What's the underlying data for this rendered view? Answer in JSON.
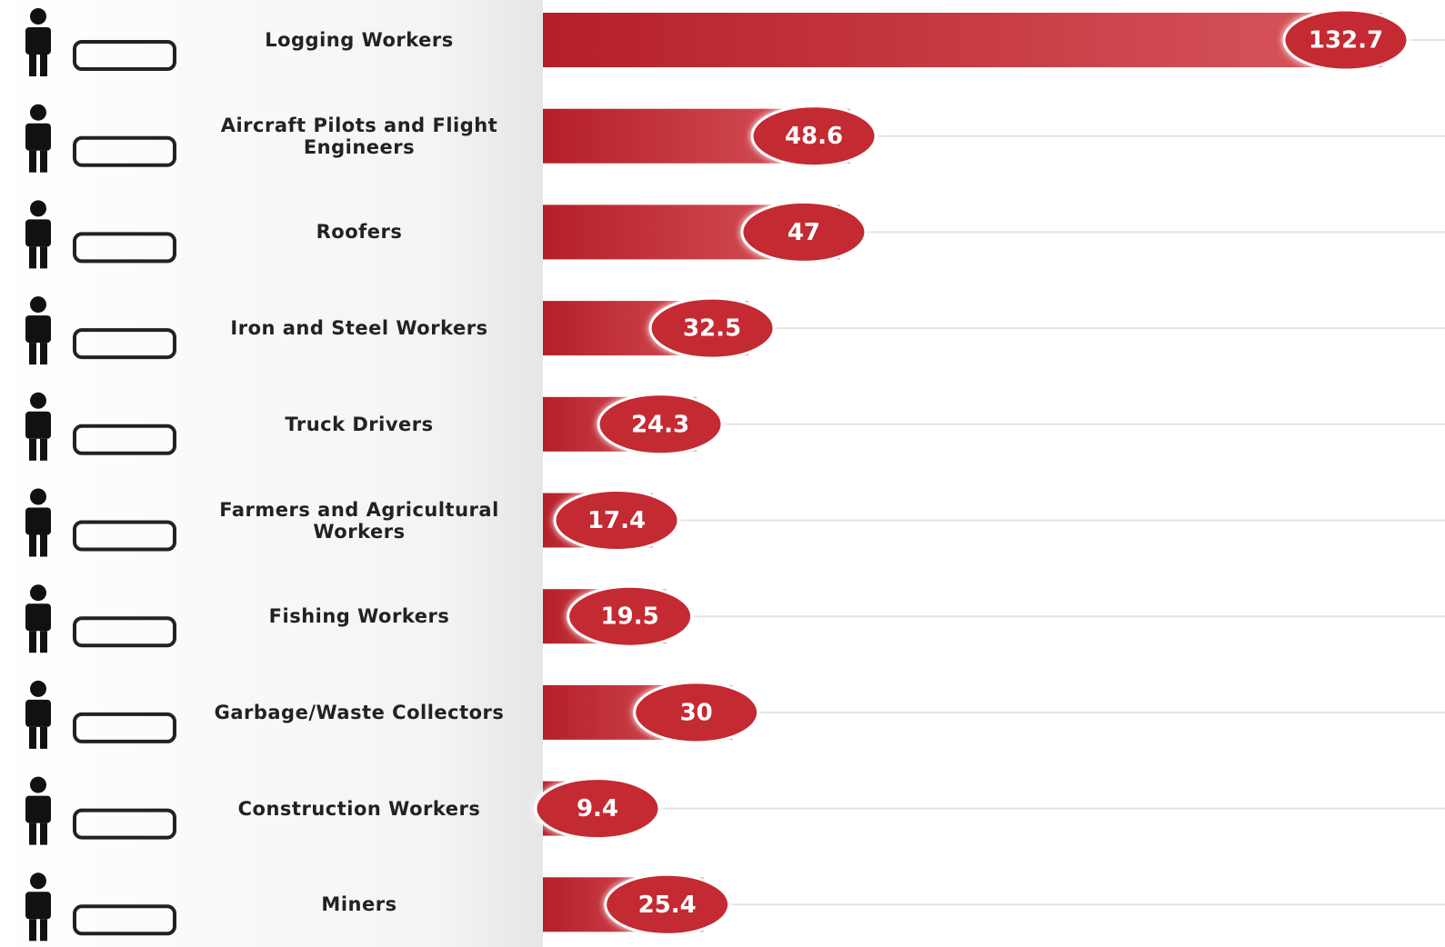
{
  "chart_data": {
    "type": "hbar",
    "categories": [
      "Logging Workers",
      "Aircraft Pilots and Flight Engineers",
      "Roofers",
      "Iron and Steel Workers",
      "Truck Drivers",
      "Farmers and Agricultural Workers",
      "Fishing Workers",
      "Garbage/Waste Collectors",
      "Construction Workers",
      "Miners"
    ],
    "values": [
      132.7,
      48.6,
      47,
      32.5,
      24.3,
      17.4,
      19.5,
      30,
      9.4,
      25.4
    ],
    "color": "#c42a33"
  }
}
